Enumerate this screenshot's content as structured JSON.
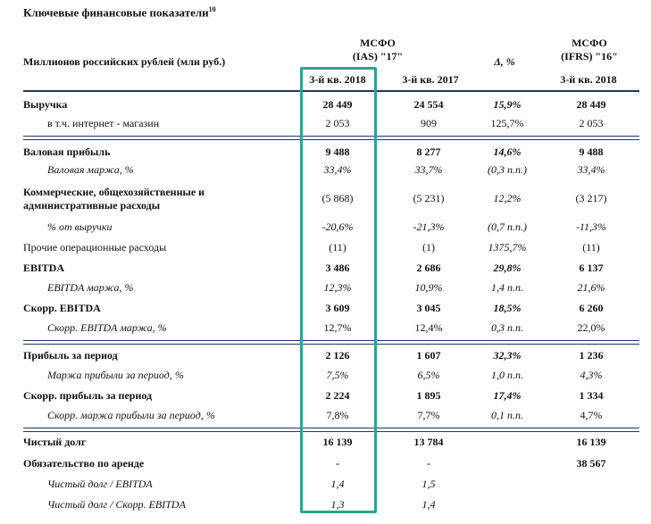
{
  "title": "Ключевые финансовые показатели",
  "title_sup": "10",
  "units_label": "Миллионов российских рублей (млн руб.)",
  "col_header_ias_line1": "МСФО",
  "col_header_ias_line2": "(IAS) \"17\"",
  "col_header_delta": "Δ, %",
  "col_header_ifrs_line1": "МСФО",
  "col_header_ifrs_line2": "(IFRS) \"16\"",
  "sub_q3_2018": "3-й кв. 2018",
  "sub_q3_2017": "3-й кв. 2017",
  "sub_q3_2018_ifrs": "3-й кв. 2018",
  "highlight_color": "#2aa58f",
  "rule_color": "#1f3864",
  "rows": [
    {
      "label": "Выручка",
      "v1": "28 449",
      "v2": "24 554",
      "v3": "15,9%",
      "v4": "28 449"
    },
    {
      "label": "в т.ч. интернет - магазин",
      "v1": "2 053",
      "v2": "909",
      "v3": "125,7%",
      "v4": "2 053"
    },
    {
      "label": "Валовая прибыль",
      "v1": "9 488",
      "v2": "8 277",
      "v3": "14,6%",
      "v4": "9 488"
    },
    {
      "label": "Валовая маржа, %",
      "v1": "33,4%",
      "v2": "33,7%",
      "v3": "(0,3 п.п.)",
      "v4": "33,4%"
    },
    {
      "label_line1": "Коммерческие, общехозяйственные и",
      "label_line2": "административные расходы",
      "v1": "(5 868)",
      "v2": "(5 231)",
      "v3": "12,2%",
      "v4": "(3 217)"
    },
    {
      "label": "% от выручки",
      "v1": "-20,6%",
      "v2": "-21,3%",
      "v3": "(0,7 п.п.)",
      "v4": "-11,3%"
    },
    {
      "label": "Прочие операционные расходы",
      "v1": "(11)",
      "v2": "(1)",
      "v3": "1375,7%",
      "v4": "(11)"
    },
    {
      "label": "EBITDA",
      "v1": "3 486",
      "v2": "2 686",
      "v3": "29,8%",
      "v4": "6 137"
    },
    {
      "label": "EBITDA маржа, %",
      "v1": "12,3%",
      "v2": "10,9%",
      "v3": "1,4 п.п.",
      "v4": "21,6%"
    },
    {
      "label": "Скорр. EBITDA",
      "v1": "3 609",
      "v2": "3 045",
      "v3": "18,5%",
      "v4": "6 260"
    },
    {
      "label": "Скорр. EBITDA маржа, %",
      "v1": "12,7%",
      "v2": "12,4%",
      "v3": "0,3 п.п.",
      "v4": "22,0%"
    },
    {
      "label": "Прибыль за период",
      "v1": "2 126",
      "v2": "1 607",
      "v3": "32,3%",
      "v4": "1 236"
    },
    {
      "label": "Маржа прибыли за период, %",
      "v1": "7,5%",
      "v2": "6,5%",
      "v3": "1,0 п.п.",
      "v4": "4,3%"
    },
    {
      "label": "Скорр. прибыль за период",
      "v1": "2 224",
      "v2": "1 895",
      "v3": "17,4%",
      "v4": "1 334"
    },
    {
      "label": "Скорр. маржа прибыли за период, %",
      "v1": "7,8%",
      "v2": "7,7%",
      "v3": "0,1 п.п.",
      "v4": "4,7%"
    },
    {
      "label": "Чистый долг",
      "v1": "16 139",
      "v2": "13 784",
      "v3": "",
      "v4": "16 139"
    },
    {
      "label": "Обязательство по аренде",
      "v1": "-",
      "v2": "-",
      "v3": "",
      "v4": "38 567"
    },
    {
      "label": "Чистый долг / EBITDA",
      "v1": "1,4",
      "v2": "1,5",
      "v3": "",
      "v4": ""
    },
    {
      "label": "Чистый долг / Скорр. EBITDA",
      "v1": "1,3",
      "v2": "1,4",
      "v3": "",
      "v4": ""
    }
  ]
}
